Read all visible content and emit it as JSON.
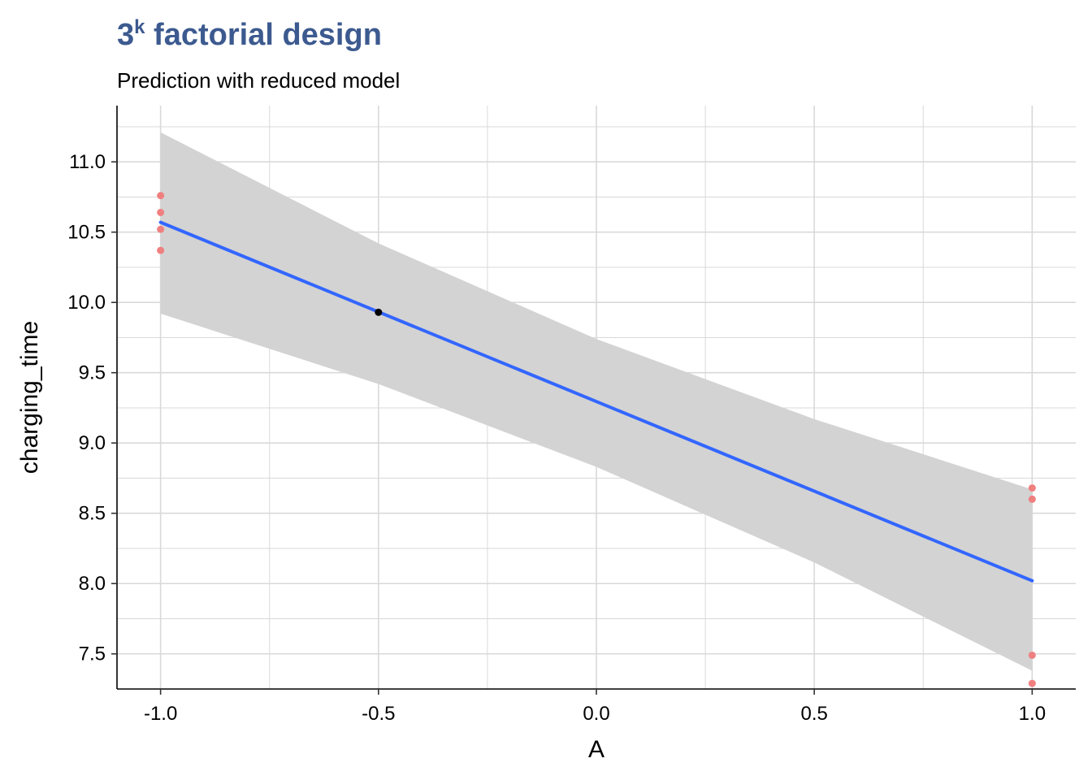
{
  "header": {
    "title_base": "3",
    "title_sup": "k",
    "title_rest": " factorial design",
    "subtitle": "Prediction with reduced model"
  },
  "colors": {
    "title": "#3c5a8f",
    "line": "#3366ff",
    "ribbon": "#d3d3d3",
    "points": "#f08080",
    "highlight": "#000000",
    "grid": "#d9d9d9"
  },
  "chart_data": {
    "type": "line",
    "xlabel": "A",
    "ylabel": "charging_time",
    "xlim": [
      -1.1,
      1.1
    ],
    "ylim": [
      7.25,
      11.4
    ],
    "x_ticks": [
      -1.0,
      -0.5,
      0.0,
      0.5,
      1.0
    ],
    "x_tick_labels": [
      "-1.0",
      "-0.5",
      "0.0",
      "0.5",
      "1.0"
    ],
    "y_ticks": [
      7.5,
      8.0,
      8.5,
      9.0,
      9.5,
      10.0,
      10.5,
      11.0
    ],
    "y_tick_labels": [
      "7.5",
      "8.0",
      "8.5",
      "9.0",
      "9.5",
      "10.0",
      "10.5",
      "11.0"
    ],
    "grid": true,
    "fit_line": {
      "x": [
        -1.0,
        1.0
      ],
      "y": [
        10.57,
        8.02
      ]
    },
    "ribbon": {
      "x": [
        -1.0,
        -0.5,
        0.0,
        0.5,
        1.0
      ],
      "upper": [
        11.21,
        10.42,
        9.74,
        9.17,
        8.67
      ],
      "lower": [
        9.92,
        9.42,
        8.83,
        8.15,
        7.38
      ]
    },
    "observations": {
      "x": [
        -1,
        -1,
        -1,
        -1,
        1,
        1,
        1,
        1
      ],
      "y": [
        10.76,
        10.64,
        10.52,
        10.37,
        8.68,
        8.6,
        7.49,
        7.29
      ]
    },
    "highlight_point": {
      "x": -0.5,
      "y": 9.93
    }
  }
}
